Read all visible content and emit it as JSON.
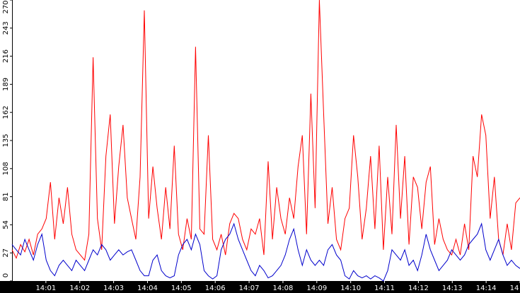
{
  "chart_data": {
    "type": "line",
    "ylim": [
      0,
      270
    ],
    "yticks": [
      0,
      27,
      54,
      81,
      108,
      135,
      162,
      189,
      216,
      243,
      270
    ],
    "xticks": [
      "14:01",
      "14:02",
      "14:03",
      "14:04",
      "14:05",
      "14:06",
      "14:07",
      "14:08",
      "14:09",
      "14:10",
      "14:11",
      "14:12",
      "14:13",
      "14:14",
      "14"
    ],
    "series": [
      {
        "color": "#ff0000",
        "values": [
          30,
          22,
          35,
          28,
          40,
          25,
          45,
          50,
          60,
          95,
          40,
          80,
          55,
          90,
          45,
          30,
          25,
          20,
          45,
          215,
          60,
          30,
          120,
          160,
          55,
          110,
          150,
          80,
          60,
          40,
          100,
          260,
          60,
          110,
          70,
          40,
          90,
          50,
          130,
          45,
          30,
          60,
          40,
          225,
          50,
          45,
          140,
          40,
          30,
          45,
          25,
          55,
          65,
          60,
          40,
          30,
          50,
          45,
          60,
          25,
          115,
          40,
          90,
          60,
          45,
          80,
          60,
          110,
          140,
          45,
          180,
          70,
          270,
          160,
          55,
          90,
          40,
          30,
          60,
          70,
          140,
          100,
          40,
          70,
          120,
          50,
          130,
          30,
          100,
          45,
          150,
          60,
          120,
          35,
          100,
          90,
          50,
          95,
          110,
          35,
          60,
          40,
          30,
          25,
          40,
          25,
          55,
          30,
          120,
          100,
          160,
          140,
          60,
          100,
          40,
          25,
          55,
          30,
          75,
          80
        ]
      },
      {
        "color": "#0000cc",
        "values": [
          35,
          30,
          25,
          40,
          30,
          20,
          35,
          45,
          20,
          10,
          5,
          15,
          20,
          15,
          10,
          20,
          15,
          10,
          20,
          30,
          25,
          35,
          30,
          20,
          25,
          30,
          25,
          28,
          30,
          20,
          10,
          5,
          5,
          20,
          25,
          10,
          5,
          3,
          5,
          25,
          35,
          40,
          30,
          45,
          35,
          10,
          5,
          2,
          5,
          30,
          40,
          45,
          55,
          40,
          30,
          20,
          10,
          5,
          15,
          10,
          3,
          5,
          10,
          15,
          25,
          40,
          50,
          30,
          15,
          30,
          20,
          15,
          20,
          15,
          30,
          35,
          25,
          20,
          5,
          2,
          10,
          5,
          3,
          5,
          2,
          5,
          3,
          0,
          10,
          30,
          25,
          20,
          30,
          15,
          20,
          10,
          25,
          45,
          30,
          20,
          10,
          15,
          20,
          30,
          25,
          20,
          25,
          35,
          40,
          45,
          55,
          30,
          20,
          30,
          40,
          25,
          15,
          20,
          15,
          12
        ]
      }
    ]
  }
}
